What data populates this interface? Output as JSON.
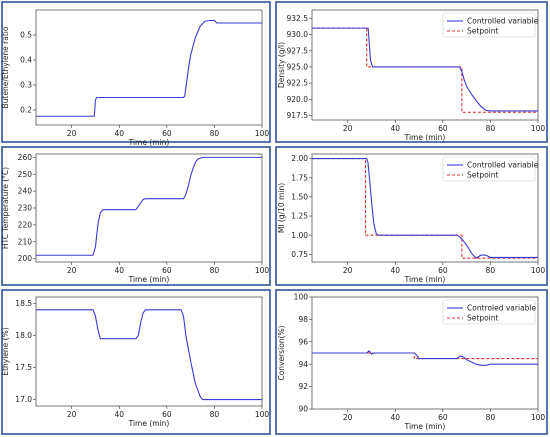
{
  "colors": {
    "controlled": "#3b3bd6",
    "setpoint": "#e03030",
    "frame": "#2f5597"
  },
  "chart_data": [
    {
      "type": "line",
      "xlabel": "Time (min)",
      "ylabel": "Butene/Ethylene ratio",
      "xlim": [
        5,
        100
      ],
      "ylim": [
        0.14,
        0.6
      ],
      "xticks": [
        20,
        40,
        60,
        80,
        100
      ],
      "yticks": [
        0.2,
        0.3,
        0.4,
        0.5
      ],
      "series": [
        {
          "color": "#3b3bd6",
          "dash": "",
          "x": [
            5,
            29.5,
            30,
            30.5,
            67,
            67.5,
            68,
            69,
            70,
            72,
            74,
            76,
            78,
            80,
            81,
            100
          ],
          "y": [
            0.175,
            0.175,
            0.24,
            0.25,
            0.25,
            0.255,
            0.29,
            0.36,
            0.42,
            0.49,
            0.535,
            0.555,
            0.558,
            0.558,
            0.548,
            0.548
          ]
        }
      ]
    },
    {
      "type": "line",
      "xlabel": "Time (min)",
      "ylabel": "Density (g/l)",
      "xlim": [
        5,
        100
      ],
      "ylim": [
        916.8,
        933.8
      ],
      "xticks": [
        20,
        40,
        60,
        80,
        100
      ],
      "yticks": [
        917.5,
        920.0,
        922.5,
        925.0,
        927.5,
        930.0,
        932.5
      ],
      "legend": [
        "Controlled variable",
        "Setpoint"
      ],
      "legend_position": "top-right",
      "series": [
        {
          "name": "Controlled variable",
          "color": "#3b3bd6",
          "dash": "",
          "x": [
            5,
            28,
            28.6,
            29.6,
            30.5,
            67,
            68,
            69,
            70,
            72,
            74,
            76,
            78,
            80,
            100
          ],
          "y": [
            931,
            931,
            931,
            926,
            925,
            925,
            924.3,
            923,
            922,
            920.8,
            919.8,
            918.9,
            918.3,
            918.2,
            918.2
          ]
        },
        {
          "name": "Setpoint",
          "color": "#e03030",
          "dash": "3,2",
          "x": [
            5,
            28,
            28,
            68,
            68,
            100
          ],
          "y": [
            931,
            931,
            925,
            925,
            918,
            918
          ]
        }
      ]
    },
    {
      "type": "line",
      "xlabel": "Time (min)",
      "ylabel": "HTC Temperature (°C)",
      "xlim": [
        5,
        100
      ],
      "ylim": [
        198,
        262
      ],
      "xticks": [
        20,
        40,
        60,
        80,
        100
      ],
      "yticks": [
        200,
        210,
        220,
        230,
        240,
        250,
        260
      ],
      "series": [
        {
          "color": "#3b3bd6",
          "dash": "",
          "x": [
            5,
            29,
            30,
            31,
            32,
            33,
            47,
            48,
            49,
            50,
            51,
            67,
            68,
            69,
            70,
            71,
            72,
            73,
            74,
            75,
            100
          ],
          "y": [
            202,
            202,
            207,
            220,
            227,
            229,
            229,
            231,
            233,
            235,
            235.5,
            235.5,
            238,
            243,
            249,
            253.5,
            257,
            259,
            259.5,
            260,
            260
          ]
        }
      ]
    },
    {
      "type": "line",
      "xlabel": "Time (min)",
      "ylabel": "MI (g/10 min)",
      "xlim": [
        5,
        100
      ],
      "ylim": [
        0.65,
        2.06
      ],
      "xticks": [
        20,
        40,
        60,
        80,
        100
      ],
      "yticks": [
        0.75,
        1.0,
        1.25,
        1.5,
        1.75,
        2.0
      ],
      "legend": [
        "Controlled variable",
        "Setpoint"
      ],
      "legend_position": "top-right",
      "series": [
        {
          "name": "Controlled variable",
          "color": "#3b3bd6",
          "dash": "",
          "x": [
            5,
            28,
            28.5,
            29,
            30,
            31,
            32,
            33,
            66,
            67,
            68,
            69,
            70,
            71,
            72,
            73,
            74,
            75,
            76,
            78,
            80,
            100
          ],
          "y": [
            2.0,
            2.0,
            1.95,
            1.8,
            1.45,
            1.15,
            1.02,
            1.0,
            1.0,
            0.98,
            0.95,
            0.91,
            0.87,
            0.82,
            0.77,
            0.73,
            0.7,
            0.72,
            0.74,
            0.74,
            0.71,
            0.71
          ]
        },
        {
          "name": "Setpoint",
          "color": "#e03030",
          "dash": "3,2",
          "x": [
            5,
            27.5,
            27.5,
            50,
            67,
            68,
            68,
            100
          ],
          "y": [
            2.0,
            2.0,
            1.0,
            1.0,
            1.0,
            1.0,
            0.7,
            0.7
          ]
        }
      ]
    },
    {
      "type": "line",
      "xlabel": "Time (min)",
      "ylabel": "Ethylene (%)",
      "xlim": [
        5,
        100
      ],
      "ylim": [
        16.9,
        18.6
      ],
      "xticks": [
        20,
        40,
        60,
        80,
        100
      ],
      "yticks": [
        17.0,
        17.5,
        18.0,
        18.5
      ],
      "series": [
        {
          "color": "#3b3bd6",
          "dash": "",
          "x": [
            5,
            29,
            30,
            31,
            32,
            47,
            48,
            49,
            50,
            51,
            66,
            67,
            68,
            70,
            72,
            74,
            75,
            100
          ],
          "y": [
            18.4,
            18.4,
            18.3,
            18.1,
            17.95,
            17.95,
            18.0,
            18.2,
            18.35,
            18.4,
            18.4,
            18.3,
            18.0,
            17.6,
            17.25,
            17.05,
            17.0,
            17.0
          ]
        }
      ]
    },
    {
      "type": "line",
      "xlabel": "Time (min)",
      "ylabel": "Conversion(%)",
      "xlim": [
        5,
        100
      ],
      "ylim": [
        90,
        100
      ],
      "xticks": [
        20,
        40,
        60,
        80,
        100
      ],
      "yticks": [
        90,
        92,
        94,
        96,
        98,
        100
      ],
      "legend": [
        "Controled variable",
        "Setpoint"
      ],
      "legend_position": "top-right",
      "series": [
        {
          "name": "Controled variable",
          "color": "#3b3bd6",
          "dash": "",
          "x": [
            5,
            28,
            29,
            30,
            31,
            48,
            49,
            50,
            66,
            67,
            68,
            69,
            70,
            72,
            74,
            76,
            78,
            80,
            100
          ],
          "y": [
            95,
            95,
            95.2,
            94.9,
            95,
            95,
            94.8,
            94.5,
            94.5,
            94.7,
            94.7,
            94.6,
            94.4,
            94.2,
            94.0,
            93.9,
            93.9,
            94.0,
            94.0
          ]
        },
        {
          "name": "Setpoint",
          "color": "#e03030",
          "dash": "3,2",
          "x": [
            5,
            48,
            48,
            100
          ],
          "y": [
            95,
            95,
            94.5,
            94.5
          ]
        }
      ]
    }
  ]
}
